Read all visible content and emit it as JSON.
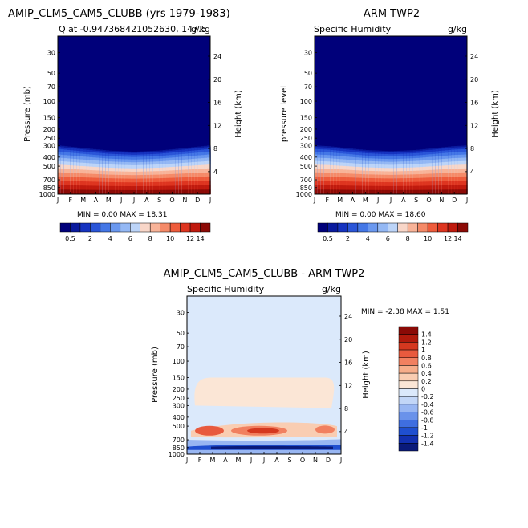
{
  "months": [
    "J",
    "F",
    "M",
    "A",
    "M",
    "J",
    "J",
    "A",
    "S",
    "O",
    "N",
    "D",
    "J"
  ],
  "pressure_ticks": [
    "30",
    "50",
    "70",
    "100",
    "150",
    "200",
    "250",
    "300",
    "400",
    "500",
    "700",
    "850",
    "1000"
  ],
  "height_ticks": [
    "24",
    "20",
    "16",
    "12",
    "8",
    "4"
  ],
  "colors": {
    "humidity_palette": [
      "#00007a",
      "#0a1a9e",
      "#1633c0",
      "#2a55d8",
      "#4477e6",
      "#6a98ef",
      "#94b8f4",
      "#bcd4f8",
      "#f8d6c8",
      "#f8b398",
      "#f58a68",
      "#ee5c3c",
      "#de3520",
      "#c01a0e",
      "#8c0a06"
    ],
    "diff_palette": [
      "#0a1a7a",
      "#1230b0",
      "#1f4fd0",
      "#3f6ee0",
      "#6a92ea",
      "#98b6f2",
      "#c2d6f7",
      "#dbe9fb",
      "#fbe6d6",
      "#f9cdb2",
      "#f6ad8a",
      "#f18060",
      "#e85a3e",
      "#d5381f",
      "#b01a0c",
      "#8a0a06"
    ]
  },
  "panels": [
    {
      "title": "AMIP_CLM5_CAM5_CLUBB (yrs 1979-1983)",
      "left_subtitle": "Q at -0.947368421052630, 147.5",
      "right_subtitle": "g/kg",
      "ylabel": "Pressure (mb)",
      "y2label": "Height (km)",
      "stats": "MIN =    0.00 MAX =   18.31",
      "colorbar_labels": [
        "0.5",
        "2",
        "4",
        "6",
        "8",
        "10",
        "12",
        "14"
      ]
    },
    {
      "title": "ARM TWP2",
      "left_subtitle": "Specific Humidity",
      "right_subtitle": "g/kg",
      "ylabel": "pressure level",
      "y2label": "Height (km)",
      "stats": "MIN =    0.00 MAX =   18.60",
      "colorbar_labels": [
        "0.5",
        "2",
        "4",
        "6",
        "8",
        "10",
        "12",
        "14"
      ]
    },
    {
      "title": "AMIP_CLM5_CAM5_CLUBB - ARM TWP2",
      "left_subtitle": "Specific Humidity",
      "right_subtitle": "g/kg",
      "ylabel": "Pressure (mb)",
      "y2label": "Height (km)",
      "stats": "MIN =   -2.38 MAX =    1.51",
      "colorbar_labels": [
        "1.4",
        "1.2",
        "1",
        "0.8",
        "0.6",
        "0.4",
        "0.2",
        "0",
        "-0.2",
        "-0.4",
        "-0.6",
        "-0.8",
        "-1",
        "-1.2",
        "-1.4"
      ]
    }
  ],
  "chart_data": [
    {
      "type": "heatmap",
      "title": "AMIP_CLM5_CAM5_CLUBB (yrs 1979-1983)",
      "variable": "Q at -0.947368421052630, 147.5",
      "units": "g/kg",
      "x": [
        "J",
        "F",
        "M",
        "A",
        "M",
        "J",
        "J",
        "A",
        "S",
        "O",
        "N",
        "D",
        "J"
      ],
      "ylabel": "Pressure (mb)",
      "y2label": "Height (km)",
      "y_scale": "log",
      "ylim": [
        1000,
        20
      ],
      "levels": [
        0.5,
        2,
        4,
        6,
        8,
        10,
        12,
        14
      ],
      "min": 0.0,
      "max": 18.31,
      "moist_top_mb": [
        300,
        310,
        320,
        330,
        340,
        345,
        350,
        345,
        340,
        330,
        320,
        310,
        300
      ]
    },
    {
      "type": "heatmap",
      "title": "ARM TWP2",
      "variable": "Specific Humidity",
      "units": "g/kg",
      "x": [
        "J",
        "F",
        "M",
        "A",
        "M",
        "J",
        "J",
        "A",
        "S",
        "O",
        "N",
        "D",
        "J"
      ],
      "ylabel": "pressure level",
      "y2label": "Height (km)",
      "y_scale": "log",
      "ylim": [
        1000,
        20
      ],
      "levels": [
        0.5,
        2,
        4,
        6,
        8,
        10,
        12,
        14
      ],
      "min": 0.0,
      "max": 18.6,
      "moist_top_mb": [
        300,
        305,
        315,
        325,
        335,
        340,
        345,
        340,
        335,
        325,
        315,
        305,
        300
      ]
    },
    {
      "type": "heatmap",
      "title": "AMIP_CLM5_CAM5_CLUBB - ARM TWP2",
      "variable": "Specific Humidity",
      "units": "g/kg",
      "x": [
        "J",
        "F",
        "M",
        "A",
        "M",
        "J",
        "J",
        "A",
        "S",
        "O",
        "N",
        "D",
        "J"
      ],
      "ylabel": "Pressure (mb)",
      "y2label": "Height (km)",
      "y_scale": "log",
      "ylim": [
        1000,
        20
      ],
      "levels": [
        -1.4,
        -1.2,
        -1,
        -0.8,
        -0.6,
        -0.4,
        -0.2,
        0,
        0.2,
        0.4,
        0.6,
        0.8,
        1,
        1.2,
        1.4
      ],
      "min": -2.38,
      "max": 1.51,
      "features": [
        {
          "name": "positive upper-troposphere band",
          "pressure_range_mb": [
            150,
            300
          ],
          "value": 0.1
        },
        {
          "name": "positive mid-level band",
          "pressure_range_mb": [
            450,
            650
          ],
          "value": 1.0
        },
        {
          "name": "negative low-level band",
          "pressure_range_mb": [
            800,
            900
          ],
          "value": -1.4
        }
      ]
    }
  ]
}
